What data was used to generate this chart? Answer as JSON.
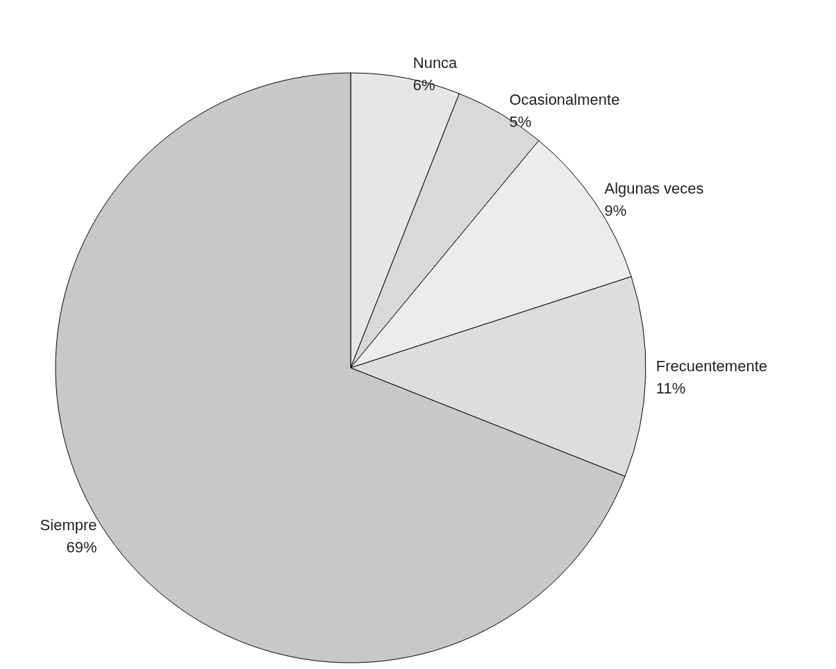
{
  "chart_data": {
    "type": "pie",
    "categories": [
      "Nunca",
      "Ocasionalmente",
      "Algunas veces",
      "Frecuentemente",
      "Siempre"
    ],
    "values": [
      6,
      5,
      9,
      11,
      69
    ],
    "value_labels": [
      "6%",
      "5%",
      "9%",
      "11%",
      "69%"
    ],
    "colors": [
      "#e6e6e6",
      "#d9d9d9",
      "#ececec",
      "#dddddd",
      "#c8c8c8"
    ],
    "legend": false
  }
}
